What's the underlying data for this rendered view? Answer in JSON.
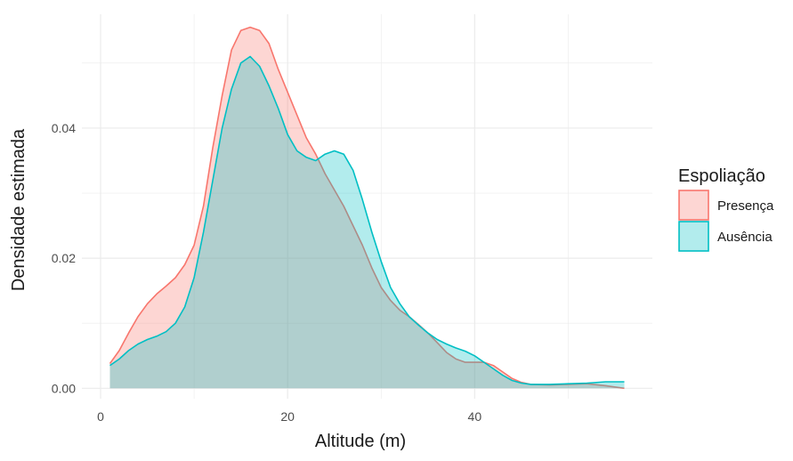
{
  "chart_data": {
    "type": "area",
    "title": "",
    "xlabel": "Altitude (m)",
    "ylabel": "Densidade estimada",
    "xlim": [
      -2,
      59
    ],
    "ylim": [
      -0.0016,
      0.0575
    ],
    "x_ticks": [
      0,
      20,
      40
    ],
    "x_tick_labels": [
      "0",
      "20",
      "40"
    ],
    "y_ticks": [
      0.0,
      0.02,
      0.04
    ],
    "y_tick_labels": [
      "0.00",
      "0.02",
      "0.04"
    ],
    "grid": true,
    "legend": {
      "title": "Espoliação",
      "placement": "right",
      "entries": [
        "Presença",
        "Ausência"
      ]
    },
    "series": [
      {
        "name": "Presença",
        "fill": "#F8766D",
        "x": [
          1,
          2,
          3,
          4,
          5,
          6,
          7,
          8,
          9,
          10,
          11,
          12,
          13,
          14,
          15,
          16,
          17,
          18,
          19,
          20,
          21,
          22,
          23,
          24,
          25,
          26,
          27,
          28,
          29,
          30,
          31,
          32,
          33,
          34,
          35,
          36,
          37,
          38,
          39,
          40,
          41,
          42,
          43,
          44,
          45,
          46,
          48,
          50,
          52,
          54,
          56
        ],
        "values": [
          0.0038,
          0.0058,
          0.0085,
          0.011,
          0.013,
          0.0145,
          0.0157,
          0.017,
          0.019,
          0.022,
          0.028,
          0.037,
          0.045,
          0.052,
          0.055,
          0.0555,
          0.055,
          0.053,
          0.049,
          0.0455,
          0.042,
          0.0385,
          0.036,
          0.033,
          0.0305,
          0.028,
          0.025,
          0.022,
          0.0185,
          0.0155,
          0.0135,
          0.012,
          0.011,
          0.0098,
          0.0085,
          0.007,
          0.0055,
          0.0045,
          0.004,
          0.004,
          0.004,
          0.0035,
          0.0025,
          0.0015,
          0.0009,
          0.0006,
          0.0005,
          0.0006,
          0.0007,
          0.0004,
          0.0
        ]
      },
      {
        "name": "Ausência",
        "fill": "#00BFC4",
        "x": [
          1,
          2,
          3,
          4,
          5,
          6,
          7,
          8,
          9,
          10,
          11,
          12,
          13,
          14,
          15,
          16,
          17,
          18,
          19,
          20,
          21,
          22,
          23,
          24,
          25,
          26,
          27,
          28,
          29,
          30,
          31,
          32,
          33,
          34,
          35,
          36,
          37,
          38,
          39,
          40,
          41,
          42,
          43,
          44,
          45,
          46,
          48,
          50,
          52,
          54,
          56
        ],
        "values": [
          0.0035,
          0.0045,
          0.0058,
          0.0068,
          0.0075,
          0.008,
          0.0087,
          0.01,
          0.0125,
          0.017,
          0.024,
          0.032,
          0.04,
          0.046,
          0.05,
          0.051,
          0.0495,
          0.0465,
          0.043,
          0.039,
          0.0365,
          0.0355,
          0.035,
          0.036,
          0.0365,
          0.036,
          0.0335,
          0.029,
          0.024,
          0.0195,
          0.0155,
          0.013,
          0.011,
          0.0097,
          0.0085,
          0.0075,
          0.0068,
          0.0062,
          0.0057,
          0.005,
          0.004,
          0.003,
          0.002,
          0.0012,
          0.0008,
          0.0006,
          0.0006,
          0.0007,
          0.0008,
          0.001,
          0.001
        ]
      }
    ],
    "colors": {
      "grid": "#EBEBEB",
      "text": "#1A1A1A",
      "tick_text": "#4D4D4D"
    }
  }
}
